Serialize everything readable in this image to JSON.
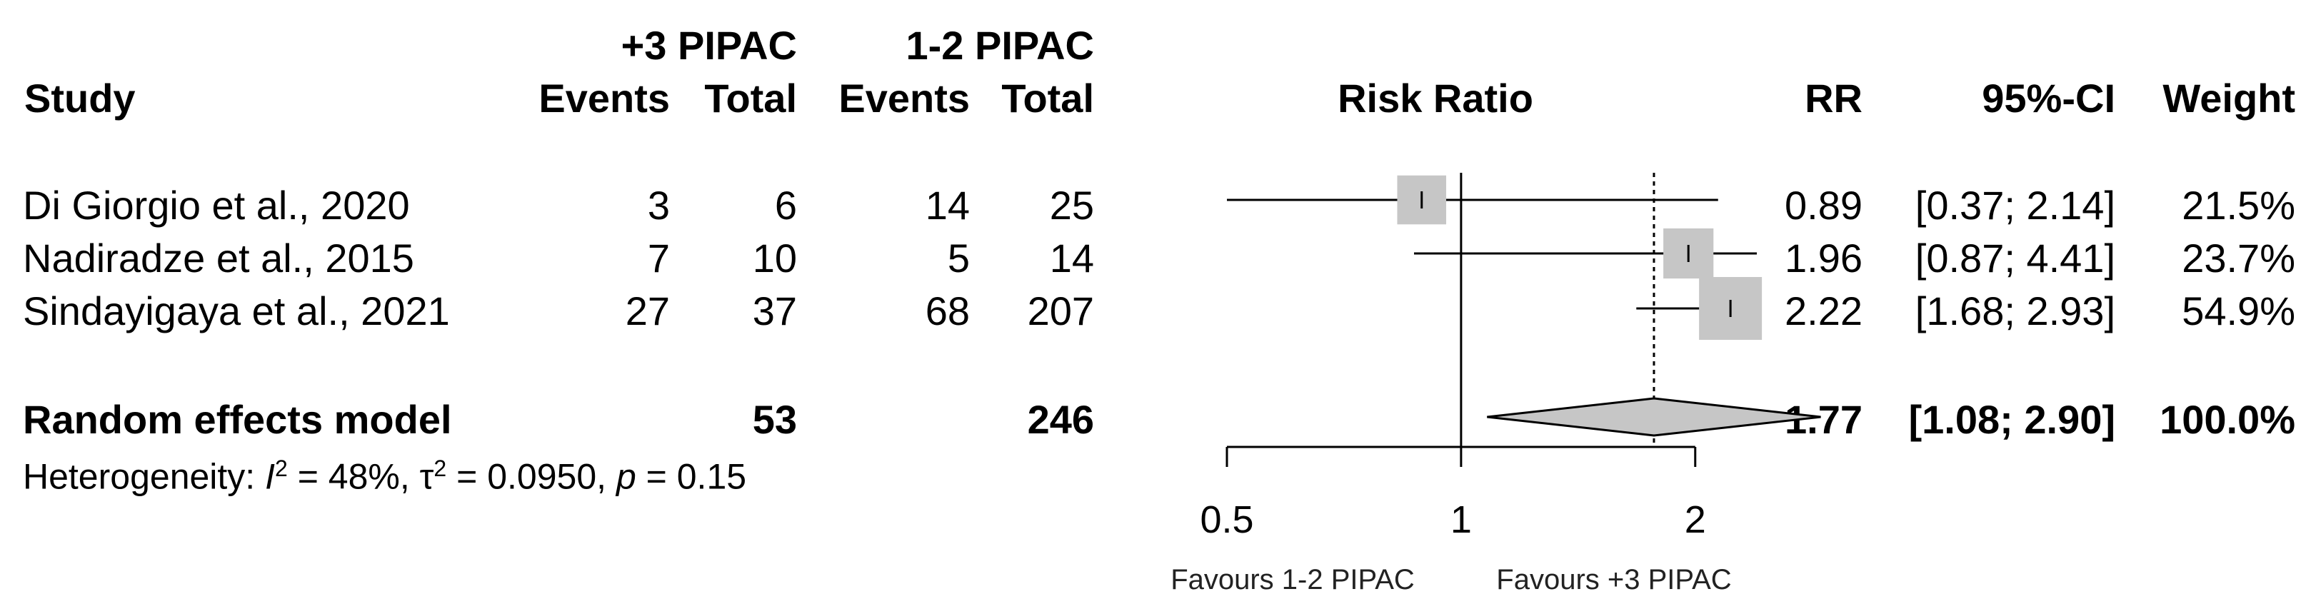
{
  "chart_data": {
    "type": "forest",
    "group_headers": {
      "experimental": "+3 PIPAC",
      "control": "1-2 PIPAC"
    },
    "columns": {
      "study": "Study",
      "events": "Events",
      "total": "Total",
      "plot_title": "Risk Ratio",
      "rr": "RR",
      "ci": "95%-CI",
      "weight": "Weight"
    },
    "studies": [
      {
        "name": "Di Giorgio et al., 2020",
        "e_events": "3",
        "e_total": "6",
        "c_events": "14",
        "c_total": "25",
        "rr": 0.89,
        "lower": 0.37,
        "upper": 2.14,
        "weight": 21.5,
        "rr_text": "0.89",
        "ci_text": "[0.37; 2.14]",
        "weight_text": "21.5%"
      },
      {
        "name": "Nadiradze et al., 2015",
        "e_events": "7",
        "e_total": "10",
        "c_events": "5",
        "c_total": "14",
        "rr": 1.96,
        "lower": 0.87,
        "upper": 4.41,
        "weight": 23.7,
        "rr_text": "1.96",
        "ci_text": "[0.87; 4.41]",
        "weight_text": "23.7%"
      },
      {
        "name": "Sindayigaya et al., 2021",
        "e_events": "27",
        "e_total": "37",
        "c_events": "68",
        "c_total": "207",
        "rr": 2.22,
        "lower": 1.68,
        "upper": 2.93,
        "weight": 54.9,
        "rr_text": "2.22",
        "ci_text": "[1.68; 2.93]",
        "weight_text": "54.9%"
      }
    ],
    "pooled": {
      "name": "Random effects model",
      "e_total": "53",
      "c_total": "246",
      "rr": 1.77,
      "lower": 1.08,
      "upper": 2.9,
      "rr_text": "1.77",
      "ci_text": "[1.08; 2.90]",
      "weight_text": "100.0%"
    },
    "heterogeneity": {
      "prefix": "Heterogeneity: ",
      "I2": "= 48%, ",
      "tau2": "= 0.0950, ",
      "p": "= 0.15",
      "i_sym": "I",
      "tau_sym": "τ",
      "p_sym": "p",
      "sup": "2"
    },
    "x_scale": "log",
    "xlim": [
      0.5,
      2.4
    ],
    "x_ticks": [
      0.5,
      1,
      2
    ],
    "x_tick_labels": [
      "0.5",
      "1",
      "2"
    ],
    "null_line": 1,
    "favours_left": "Favours 1-2 PIPAC",
    "favours_right": "Favours +3 PIPAC",
    "colors": {
      "square": "#c6c6c6",
      "diamond": "#c6c6c6",
      "line": "#000000"
    }
  }
}
